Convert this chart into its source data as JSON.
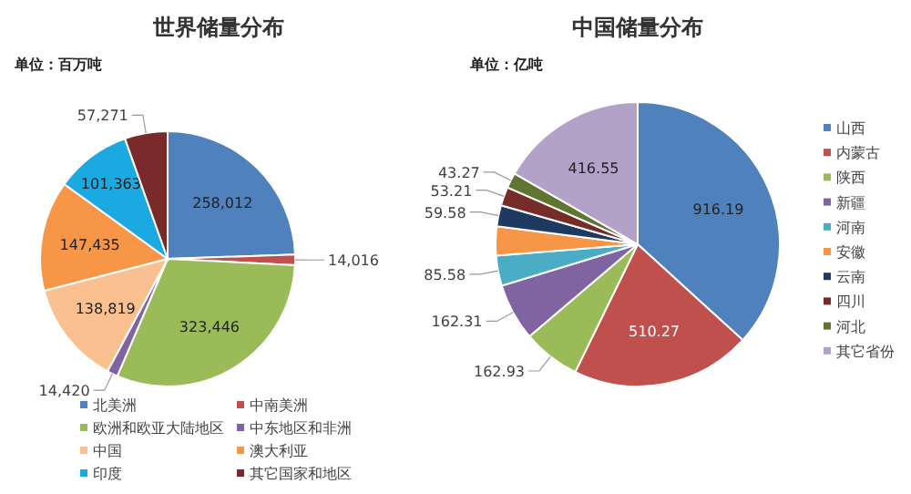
{
  "chart_data": [
    {
      "type": "pie",
      "title": "世界储量分布",
      "subtitle": "单位：百万吨",
      "legend": "bottom",
      "categories": [
        "北美洲",
        "中南美洲",
        "欧洲和欧亚大陆地区",
        "中东地区和非洲",
        "中国",
        "澳大利亚",
        "印度",
        "其它国家和地区"
      ],
      "values": [
        258012,
        14016,
        323446,
        14420,
        138819,
        147435,
        101363,
        57271
      ],
      "value_labels": [
        "258,012",
        "14,016",
        "323,446",
        "14,420",
        "138,819",
        "147,435",
        "101,363",
        "57,271"
      ],
      "colors": [
        "#4f81bd",
        "#c0504d",
        "#9bbb59",
        "#8064a2",
        "#fac090",
        "#f79646",
        "#1aa9e0",
        "#7a2a2a"
      ]
    },
    {
      "type": "pie",
      "title": "中国储量分布",
      "subtitle": "单位：亿吨",
      "legend": "right",
      "categories": [
        "山西",
        "内蒙古",
        "陕西",
        "新疆",
        "河南",
        "安徽",
        "云南",
        "四川",
        "河北",
        "其它省份"
      ],
      "values": [
        916.19,
        510.27,
        162.93,
        162.31,
        85.58,
        82,
        59.58,
        53.21,
        43.27,
        416.55
      ],
      "value_labels": [
        "916.19",
        "510.27",
        "162.93",
        "162.31",
        "85.58",
        null,
        "59.58",
        "53.21",
        "43.27",
        "416.55"
      ],
      "colors": [
        "#4f81bd",
        "#c0504d",
        "#9bbb59",
        "#8064a2",
        "#4bacc6",
        "#f79646",
        "#1f3a60",
        "#772c2a",
        "#5f7530",
        "#b3a2c7"
      ]
    }
  ]
}
